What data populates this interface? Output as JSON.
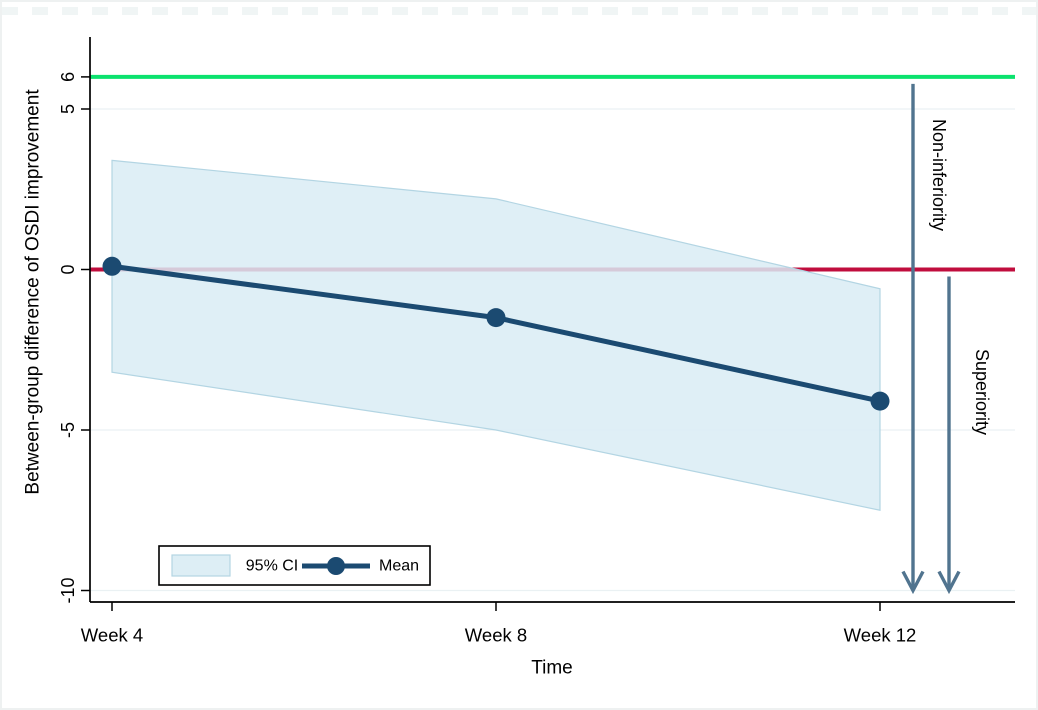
{
  "chart_data": {
    "type": "line",
    "title": "",
    "xlabel": "Time",
    "ylabel": "Between-group difference of OSDI improvement",
    "categories": [
      "Week 4",
      "Week 8",
      "Week 12"
    ],
    "series": [
      {
        "name": "Mean",
        "values": [
          0.1,
          -1.5,
          -4.1
        ]
      },
      {
        "name": "95% CI upper",
        "values": [
          3.4,
          2.2,
          -0.6
        ]
      },
      {
        "name": "95% CI lower",
        "values": [
          -3.2,
          -5.0,
          -7.5
        ]
      }
    ],
    "yticks": [
      6,
      5,
      0,
      -5,
      -10
    ],
    "ylim": [
      -10.4,
      7.2
    ],
    "grid": "horizontal-faint",
    "legend_position": "bottom-left",
    "reference_lines": [
      {
        "name": "noninferiority-margin",
        "y": 6,
        "color": "#0be26e"
      },
      {
        "name": "zero-line",
        "y": 0,
        "color": "#c00d3d"
      }
    ],
    "annotations": [
      {
        "text": "Non-inferiority",
        "from_y": 6,
        "to_y": -10
      },
      {
        "text": "Superiority",
        "from_y": 0,
        "to_y": -10
      }
    ],
    "legend": {
      "entries": [
        {
          "label": "95% CI",
          "type": "area"
        },
        {
          "label": "Mean",
          "type": "line-marker"
        }
      ]
    }
  },
  "colors": {
    "band_fill": "#d9ecf5",
    "band_fill_solid": "#ddeef5",
    "band_stroke": "#b3d5e3",
    "mean": "#1b4a71",
    "green": "#0be26e",
    "red": "#c00d3d",
    "arrow": "#51748f",
    "grid": "#eaf1f3",
    "axis": "#000000",
    "text": "#000000",
    "background": "#ffffff"
  }
}
